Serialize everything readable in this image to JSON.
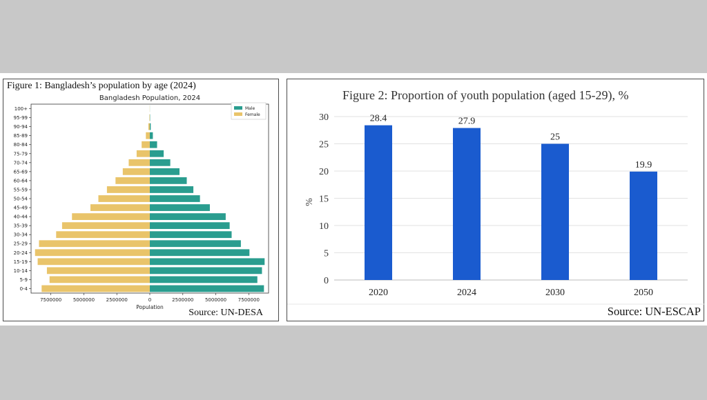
{
  "figure1": {
    "caption": "Figure 1: Bangladesh’s population by age (2024)",
    "source": "Source: UN-DESA",
    "colors": {
      "male": "#2a9d8f",
      "female": "#e9c46a"
    },
    "chart_data": {
      "type": "bar",
      "orientation": "horizontal-pyramid",
      "title": "Bangladesh Population, 2024",
      "xlabel": "Population",
      "ylabel": "",
      "xlim": [
        -9000000,
        9000000
      ],
      "xticks": [
        -7500000,
        -5000000,
        -2500000,
        0,
        2500000,
        5000000,
        7500000
      ],
      "xtick_labels": [
        "7500000",
        "5000000",
        "2500000",
        "0",
        "2500000",
        "5000000",
        "7500000"
      ],
      "legend_position": "top-right",
      "grid": false,
      "categories": [
        "0-4",
        "5-9",
        "10-14",
        "15-19",
        "20-24",
        "25-29",
        "30-34",
        "35-39",
        "40-44",
        "45-49",
        "50-54",
        "55-59",
        "60-64",
        "65-69",
        "70-74",
        "75-79",
        "80-84",
        "85-89",
        "90-94",
        "95-99",
        "100+"
      ],
      "series": [
        {
          "name": "Male",
          "values": [
            8650000,
            8150000,
            8500000,
            8700000,
            7550000,
            6900000,
            6200000,
            6050000,
            5750000,
            4550000,
            3800000,
            3300000,
            2800000,
            2250000,
            1550000,
            1050000,
            550000,
            230000,
            70000,
            20000,
            5000
          ]
        },
        {
          "name": "Female",
          "values": [
            8200000,
            7600000,
            7800000,
            8500000,
            8700000,
            8400000,
            7100000,
            6650000,
            5900000,
            4500000,
            3900000,
            3250000,
            2600000,
            2050000,
            1600000,
            1000000,
            620000,
            300000,
            110000,
            30000,
            8000
          ]
        }
      ]
    }
  },
  "figure2": {
    "caption": "Figure 2: Proportion of youth population (aged 15-29), %",
    "source": "Source: UN-ESCAP",
    "colors": {
      "bar": "#1a5bcf"
    },
    "chart_data": {
      "type": "bar",
      "title": "",
      "xlabel": "",
      "ylabel": "%",
      "ylim": [
        0,
        30
      ],
      "yticks": [
        0,
        5,
        10,
        15,
        20,
        25,
        30
      ],
      "grid": true,
      "categories": [
        "2020",
        "2024",
        "2030",
        "2050"
      ],
      "values": [
        28.4,
        27.9,
        25,
        19.9
      ],
      "data_labels": [
        "28.4",
        "27.9",
        "25",
        "19.9"
      ]
    }
  }
}
